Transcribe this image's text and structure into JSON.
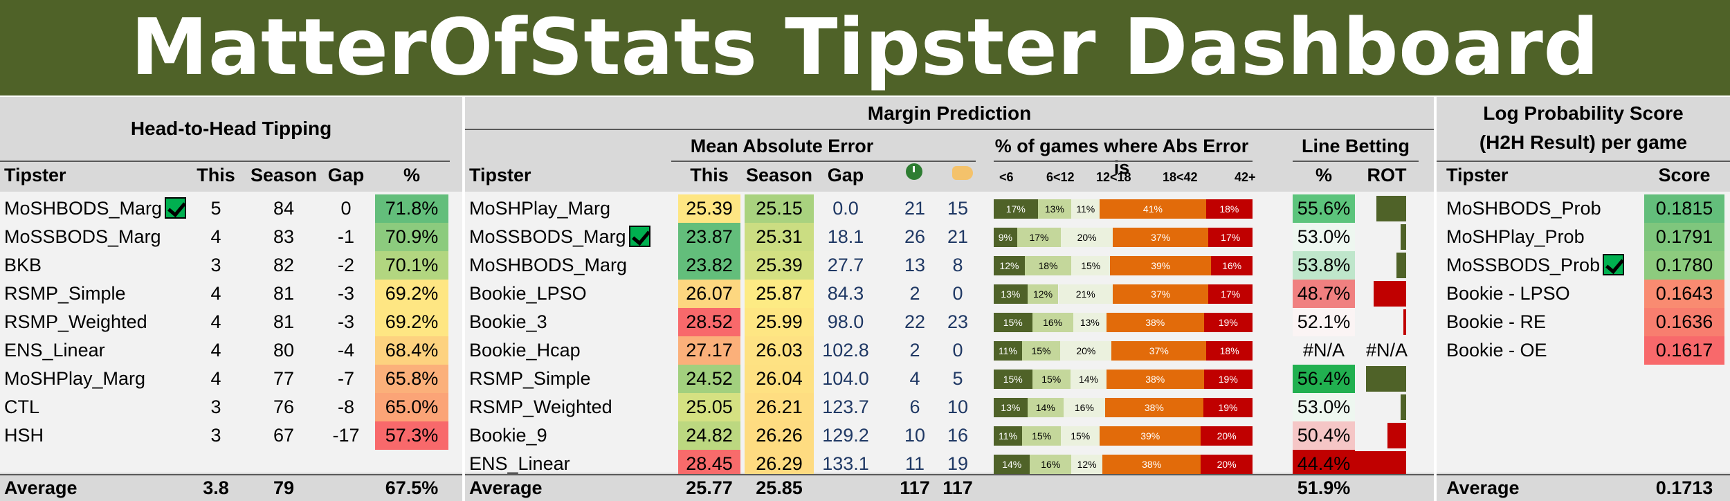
{
  "title": "MatterOfStats Tipster Dashboard",
  "h2h": {
    "section_title": "Head-to-Head Tipping",
    "headers": {
      "tipster": "Tipster",
      "this": "This",
      "season": "Season",
      "gap": "Gap",
      "pct": "%"
    },
    "rows": [
      {
        "tipster": "MoSHBODS_Marg",
        "check": true,
        "this": "5",
        "season": "84",
        "gap": "0",
        "pct": "71.8%",
        "color": "#63be7b"
      },
      {
        "tipster": "MoSSBODS_Marg",
        "check": false,
        "this": "4",
        "season": "83",
        "gap": "-1",
        "pct": "70.9%",
        "color": "#8ccb7e"
      },
      {
        "tipster": "BKB",
        "check": false,
        "this": "3",
        "season": "82",
        "gap": "-2",
        "pct": "70.1%",
        "color": "#b2d680"
      },
      {
        "tipster": "RSMP_Simple",
        "check": false,
        "this": "4",
        "season": "81",
        "gap": "-3",
        "pct": "69.2%",
        "color": "#fee683"
      },
      {
        "tipster": "RSMP_Weighted",
        "check": false,
        "this": "4",
        "season": "81",
        "gap": "-3",
        "pct": "69.2%",
        "color": "#fee683"
      },
      {
        "tipster": "ENS_Linear",
        "check": false,
        "this": "4",
        "season": "80",
        "gap": "-4",
        "pct": "68.4%",
        "color": "#fdd27f"
      },
      {
        "tipster": "MoSHPlay_Marg",
        "check": false,
        "this": "4",
        "season": "77",
        "gap": "-7",
        "pct": "65.8%",
        "color": "#fbb07a"
      },
      {
        "tipster": "CTL",
        "check": false,
        "this": "3",
        "season": "76",
        "gap": "-8",
        "pct": "65.0%",
        "color": "#fba477"
      },
      {
        "tipster": "HSH",
        "check": false,
        "this": "3",
        "season": "67",
        "gap": "-17",
        "pct": "57.3%",
        "color": "#f8696b"
      }
    ],
    "footer": {
      "label": "Average",
      "this": "3.8",
      "season": "79",
      "pct": "67.5%"
    }
  },
  "margin": {
    "section_title": "Margin Prediction",
    "mae_title": "Mean Absolute Error",
    "pct_title": "% of games where Abs Error is",
    "line_title": "Line Betting",
    "headers": {
      "tipster": "Tipster",
      "this": "This",
      "season": "Season",
      "gap": "Gap",
      "pct": "%",
      "rot": "ROT"
    },
    "bucket_labels": [
      "<6",
      "6<12",
      "12<18",
      "18<42",
      "42+"
    ],
    "rows": [
      {
        "tipster": "MoSHPlay_Marg",
        "check": false,
        "this": "25.39",
        "this_color": "#fee683",
        "season": "25.15",
        "season_color": "#a9d27f",
        "gap": "0.0",
        "icon1": "21",
        "icon2": "15",
        "buckets": [
          17,
          13,
          11,
          41,
          18
        ],
        "buckets_text": [
          "17%",
          "13%",
          "11%",
          "41%",
          "18%"
        ],
        "line_pct": "55.6%",
        "line_color": "#5cc47c",
        "rot": 0.55
      },
      {
        "tipster": "MoSSBODS_Marg",
        "check": true,
        "this": "23.87",
        "this_color": "#63be7b",
        "season": "25.31",
        "season_color": "#cbdd82",
        "gap": "18.1",
        "icon1": "26",
        "icon2": "21",
        "buckets": [
          9,
          17,
          20,
          37,
          17
        ],
        "buckets_text": [
          "9%",
          "17%",
          "20%",
          "37%",
          "17%"
        ],
        "line_pct": "53.0%",
        "line_color": "#eef7f0",
        "rot": 0.1
      },
      {
        "tipster": "MoSHBODS_Marg",
        "check": false,
        "this": "23.82",
        "this_color": "#63be7b",
        "season": "25.39",
        "season_color": "#d3e082",
        "gap": "27.7",
        "icon1": "13",
        "icon2": "8",
        "buckets": [
          12,
          18,
          15,
          39,
          16
        ],
        "buckets_text": [
          "12%",
          "18%",
          "15%",
          "39%",
          "16%"
        ],
        "line_pct": "53.8%",
        "line_color": "#bfe6cb",
        "rot": 0.18
      },
      {
        "tipster": "Bookie_LPSO",
        "check": false,
        "this": "26.07",
        "this_color": "#fdd780",
        "season": "25.87",
        "season_color": "#fdeb84",
        "gap": "84.3",
        "icon1": "2",
        "icon2": "0",
        "buckets": [
          13,
          12,
          21,
          37,
          17
        ],
        "buckets_text": [
          "13%",
          "12%",
          "21%",
          "37%",
          "17%"
        ],
        "line_pct": "48.7%",
        "line_color": "#f08080",
        "rot": -0.6
      },
      {
        "tipster": "Bookie_3",
        "check": false,
        "this": "28.52",
        "this_color": "#f8696b",
        "season": "25.99",
        "season_color": "#fee683",
        "gap": "98.0",
        "icon1": "22",
        "icon2": "23",
        "buckets": [
          15,
          16,
          13,
          38,
          19
        ],
        "buckets_text": [
          "15%",
          "16%",
          "13%",
          "38%",
          "19%"
        ],
        "line_pct": "52.1%",
        "line_color": "#fbf4f4",
        "rot": -0.05
      },
      {
        "tipster": "Bookie_Hcap",
        "check": false,
        "this": "27.17",
        "this_color": "#fbb07a",
        "season": "26.03",
        "season_color": "#fee283",
        "gap": "102.8",
        "icon1": "2",
        "icon2": "0",
        "buckets": [
          11,
          15,
          20,
          37,
          18
        ],
        "buckets_text": [
          "11%",
          "15%",
          "20%",
          "37%",
          "18%"
        ],
        "line_pct": "#N/A",
        "line_color": "#f2f2f2",
        "rot_text": "#N/A",
        "rot": 0
      },
      {
        "tipster": "RSMP_Simple",
        "check": false,
        "this": "24.52",
        "this_color": "#a2d07e",
        "season": "26.04",
        "season_color": "#fee182",
        "gap": "104.0",
        "icon1": "4",
        "icon2": "5",
        "buckets": [
          15,
          15,
          14,
          38,
          19
        ],
        "buckets_text": [
          "15%",
          "15%",
          "14%",
          "38%",
          "19%"
        ],
        "line_pct": "56.4%",
        "line_color": "#21b050",
        "rot": 0.75
      },
      {
        "tipster": "RSMP_Weighted",
        "check": false,
        "this": "25.05",
        "this_color": "#d5e182",
        "season": "26.21",
        "season_color": "#fedd81",
        "gap": "123.7",
        "icon1": "6",
        "icon2": "10",
        "buckets": [
          13,
          14,
          16,
          38,
          19
        ],
        "buckets_text": [
          "13%",
          "14%",
          "16%",
          "38%",
          "19%"
        ],
        "line_pct": "53.0%",
        "line_color": "#eef7f0",
        "rot": 0.1
      },
      {
        "tipster": "Bookie_9",
        "check": false,
        "this": "24.82",
        "this_color": "#bcd880",
        "season": "26.26",
        "season_color": "#fedc81",
        "gap": "129.2",
        "icon1": "10",
        "icon2": "16",
        "buckets": [
          11,
          15,
          15,
          39,
          20
        ],
        "buckets_text": [
          "11%",
          "15%",
          "15%",
          "39%",
          "20%"
        ],
        "line_pct": "50.4%",
        "line_color": "#f5c6c6",
        "rot": -0.35
      },
      {
        "tipster": "ENS_Linear",
        "check": false,
        "this": "28.45",
        "this_color": "#f86b6b",
        "season": "26.29",
        "season_color": "#fedb81",
        "gap": "133.1",
        "icon1": "11",
        "icon2": "19",
        "buckets": [
          14,
          16,
          12,
          38,
          20
        ],
        "buckets_text": [
          "14%",
          "16%",
          "12%",
          "38%",
          "20%"
        ],
        "line_pct": "44.4%",
        "line_color": "#c00000",
        "rot": -1.0
      }
    ],
    "footer": {
      "label": "Average",
      "this": "25.77",
      "season": "25.85",
      "icon1": "117",
      "icon2": "117",
      "line_pct": "51.9%"
    }
  },
  "logprob": {
    "section_title_1": "Log Probability Score",
    "section_title_2": "(H2H Result) per game",
    "headers": {
      "tipster": "Tipster",
      "score": "Score"
    },
    "rows": [
      {
        "tipster": "MoSHBODS_Prob",
        "check": false,
        "score": "0.1815",
        "color": "#63be7b"
      },
      {
        "tipster": "MoSHPlay_Prob",
        "check": false,
        "score": "0.1791",
        "color": "#7fc67d"
      },
      {
        "tipster": "MoSSBODS_Prob",
        "check": true,
        "score": "0.1780",
        "color": "#8dcb7e"
      },
      {
        "tipster": "Bookie - LPSO",
        "check": false,
        "score": "0.1643",
        "color": "#f98b71"
      },
      {
        "tipster": "Bookie - RE",
        "check": false,
        "score": "0.1636",
        "color": "#f87e6f"
      },
      {
        "tipster": "Bookie - OE",
        "check": false,
        "score": "0.1617",
        "color": "#f8696b"
      }
    ],
    "footer": {
      "label": "Average",
      "score": "0.1713"
    }
  },
  "icons": {
    "icon1": "clock-icon",
    "icon2": "thumb-icon"
  },
  "bucket_colors": [
    "#4f6228",
    "#c4d79b",
    "#ebf1de",
    "#e26b0a",
    "#c00000"
  ]
}
